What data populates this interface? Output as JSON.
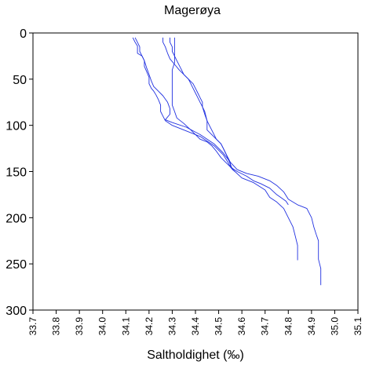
{
  "chart_data": {
    "type": "line",
    "title": "Magerøya",
    "xlabel": "Saltholdighet (‰)",
    "ylabel": "",
    "xlim": [
      33.7,
      35.1
    ],
    "ylim": [
      0,
      300
    ],
    "y_inverted": true,
    "grid": false,
    "legend": "none",
    "line_color": "#2030e0",
    "x_ticks": [
      33.7,
      33.8,
      33.9,
      34.0,
      34.1,
      34.2,
      34.3,
      34.4,
      34.5,
      34.6,
      34.7,
      34.8,
      34.9,
      35.0,
      35.1
    ],
    "x_tick_labels": [
      "33.7",
      "33.8",
      "33.9",
      "34.0",
      "34.1",
      "34.2",
      "34.3",
      "34.4",
      "34.5",
      "34.6",
      "34.7",
      "34.8",
      "34.9",
      "35.0",
      "35.1"
    ],
    "y_ticks": [
      0,
      50,
      100,
      150,
      200,
      250,
      300
    ],
    "y_tick_labels": [
      "0",
      "50",
      "100",
      "150",
      "200",
      "250",
      "300"
    ],
    "series": [
      {
        "points": [
          [
            34.14,
            5
          ],
          [
            34.15,
            10
          ],
          [
            34.16,
            15
          ],
          [
            34.16,
            20
          ],
          [
            34.17,
            25
          ],
          [
            34.18,
            30
          ],
          [
            34.18,
            36
          ],
          [
            34.19,
            42
          ],
          [
            34.2,
            48
          ],
          [
            34.2,
            55
          ],
          [
            34.21,
            60
          ],
          [
            34.22,
            63
          ],
          [
            34.23,
            67
          ],
          [
            34.24,
            72
          ],
          [
            34.25,
            78
          ],
          [
            34.25,
            85
          ],
          [
            34.26,
            90
          ],
          [
            34.27,
            95
          ],
          [
            34.3,
            100
          ],
          [
            34.35,
            105
          ],
          [
            34.42,
            112
          ],
          [
            34.48,
            122
          ],
          [
            34.52,
            132
          ],
          [
            34.54,
            140
          ],
          [
            34.55,
            145
          ],
          [
            34.57,
            150
          ],
          [
            34.6,
            157
          ],
          [
            34.65,
            162
          ],
          [
            34.7,
            170
          ],
          [
            34.72,
            178
          ],
          [
            34.75,
            183
          ],
          [
            34.78,
            190
          ],
          [
            34.8,
            200
          ],
          [
            34.82,
            210
          ],
          [
            34.83,
            220
          ],
          [
            34.84,
            230
          ],
          [
            34.84,
            238
          ],
          [
            34.84,
            246
          ]
        ]
      },
      {
        "points": [
          [
            34.13,
            5
          ],
          [
            34.14,
            10
          ],
          [
            34.15,
            14
          ],
          [
            34.15,
            18
          ],
          [
            34.15,
            22
          ],
          [
            34.17,
            25
          ],
          [
            34.18,
            30
          ],
          [
            34.19,
            38
          ],
          [
            34.2,
            45
          ],
          [
            34.21,
            52
          ],
          [
            34.22,
            58
          ],
          [
            34.24,
            63
          ],
          [
            34.26,
            68
          ],
          [
            34.28,
            75
          ],
          [
            34.29,
            82
          ],
          [
            34.29,
            88
          ],
          [
            34.27,
            94
          ],
          [
            34.3,
            97
          ],
          [
            34.36,
            102
          ],
          [
            34.42,
            110
          ],
          [
            34.48,
            120
          ],
          [
            34.52,
            130
          ],
          [
            34.55,
            140
          ],
          [
            34.58,
            148
          ],
          [
            34.62,
            152
          ],
          [
            34.67,
            155
          ],
          [
            34.72,
            160
          ],
          [
            34.75,
            165
          ],
          [
            34.78,
            172
          ],
          [
            34.8,
            180
          ],
          [
            34.84,
            186
          ],
          [
            34.88,
            190
          ],
          [
            34.9,
            200
          ],
          [
            34.91,
            210
          ],
          [
            34.92,
            218
          ],
          [
            34.93,
            225
          ],
          [
            34.93,
            235
          ],
          [
            34.93,
            245
          ],
          [
            34.94,
            255
          ],
          [
            34.94,
            265
          ],
          [
            34.94,
            273
          ]
        ]
      },
      {
        "points": [
          [
            34.31,
            5
          ],
          [
            34.31,
            12
          ],
          [
            34.31,
            18
          ],
          [
            34.31,
            25
          ],
          [
            34.31,
            32
          ],
          [
            34.3,
            40
          ],
          [
            34.3,
            48
          ],
          [
            34.3,
            55
          ],
          [
            34.3,
            62
          ],
          [
            34.3,
            70
          ],
          [
            34.3,
            78
          ],
          [
            34.31,
            85
          ],
          [
            34.32,
            92
          ],
          [
            34.35,
            98
          ],
          [
            34.38,
            105
          ],
          [
            34.4,
            110
          ],
          [
            34.42,
            115
          ],
          [
            34.45,
            118
          ],
          [
            34.47,
            122
          ],
          [
            34.49,
            128
          ],
          [
            34.51,
            135
          ],
          [
            34.53,
            140
          ],
          [
            34.55,
            145
          ],
          [
            34.58,
            150
          ],
          [
            34.62,
            155
          ],
          [
            34.65,
            160
          ],
          [
            34.68,
            163
          ],
          [
            34.72,
            168
          ],
          [
            34.75,
            175
          ],
          [
            34.79,
            182
          ],
          [
            34.8,
            186
          ]
        ]
      },
      {
        "points": [
          [
            34.29,
            5
          ],
          [
            34.29,
            10
          ],
          [
            34.3,
            15
          ],
          [
            34.3,
            20
          ],
          [
            34.31,
            25
          ],
          [
            34.32,
            30
          ],
          [
            34.33,
            35
          ],
          [
            34.34,
            40
          ],
          [
            34.35,
            45
          ],
          [
            34.37,
            50
          ],
          [
            34.38,
            55
          ],
          [
            34.39,
            60
          ],
          [
            34.4,
            65
          ],
          [
            34.41,
            70
          ],
          [
            34.42,
            75
          ],
          [
            34.43,
            80
          ],
          [
            34.44,
            85
          ],
          [
            34.45,
            95
          ],
          [
            34.45,
            105
          ],
          [
            34.47,
            110
          ],
          [
            34.49,
            115
          ],
          [
            34.51,
            120
          ],
          [
            34.52,
            125
          ],
          [
            34.53,
            130
          ],
          [
            34.54,
            135
          ],
          [
            34.55,
            140
          ],
          [
            34.55,
            145
          ],
          [
            34.56,
            148
          ]
        ]
      },
      {
        "points": [
          [
            34.26,
            5
          ],
          [
            34.26,
            10
          ],
          [
            34.27,
            15
          ],
          [
            34.28,
            22
          ],
          [
            34.29,
            28
          ],
          [
            34.31,
            34
          ],
          [
            34.33,
            40
          ],
          [
            34.35,
            45
          ],
          [
            34.37,
            50
          ],
          [
            34.39,
            55
          ],
          [
            34.4,
            60
          ],
          [
            34.41,
            65
          ],
          [
            34.42,
            70
          ],
          [
            34.43,
            75
          ],
          [
            34.43,
            80
          ],
          [
            34.44,
            88
          ],
          [
            34.45,
            95
          ],
          [
            34.46,
            100
          ],
          [
            34.47,
            105
          ],
          [
            34.48,
            110
          ],
          [
            34.49,
            115
          ],
          [
            34.51,
            120
          ],
          [
            34.52,
            125
          ],
          [
            34.53,
            130
          ],
          [
            34.54,
            136
          ],
          [
            34.55,
            142
          ],
          [
            34.56,
            148
          ],
          [
            34.57,
            150
          ]
        ]
      }
    ]
  }
}
